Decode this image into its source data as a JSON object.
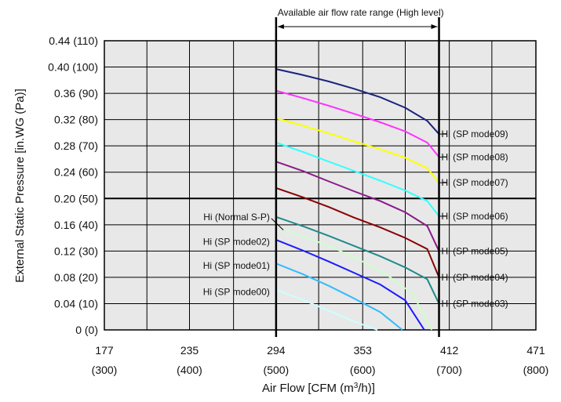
{
  "chart_data": {
    "type": "line",
    "xlabel": "Air Flow [CFM (m³/h)]",
    "ylabel": "External Static Pressure [in.WG (Pa)]",
    "x_unit_primary": "CFM",
    "x_unit_secondary": "m³/h",
    "xlim": [
      177,
      471
    ],
    "ylim": [
      0,
      0.44
    ],
    "x_ticks": [
      {
        "value": 177,
        "label": "177",
        "sublabel": "(300)"
      },
      {
        "value": 235,
        "label": "235",
        "sublabel": "(400)"
      },
      {
        "value": 294,
        "label": "294",
        "sublabel": "(500)"
      },
      {
        "value": 353,
        "label": "353",
        "sublabel": "(600)"
      },
      {
        "value": 412,
        "label": "412",
        "sublabel": "(700)"
      },
      {
        "value": 471,
        "label": "471",
        "sublabel": "(800)"
      }
    ],
    "y_ticks": [
      {
        "value": 0,
        "label": "0 (0)"
      },
      {
        "value": 0.04,
        "label": "0.04 (10)"
      },
      {
        "value": 0.08,
        "label": "0.08 (20)"
      },
      {
        "value": 0.12,
        "label": "0.12 (30)"
      },
      {
        "value": 0.16,
        "label": "0.16 (40)"
      },
      {
        "value": 0.2,
        "label": "0.20 (50)"
      },
      {
        "value": 0.24,
        "label": "0.24 (60)"
      },
      {
        "value": 0.28,
        "label": "0.28 (70)"
      },
      {
        "value": 0.32,
        "label": "0.32 (80)"
      },
      {
        "value": 0.36,
        "label": "0.36 (90)"
      },
      {
        "value": 0.4,
        "label": "0.40 (100)"
      },
      {
        "value": 0.44,
        "label": "0.44 (110)"
      }
    ],
    "x_minor_ticks": [
      206,
      265,
      323,
      382,
      441
    ],
    "bold_gridline_y": 0.2,
    "range_note": {
      "text": "Available air flow rate range (High level)",
      "x_start": 294,
      "x_end": 405
    },
    "grid": true,
    "background": "#e8e8e8",
    "series": [
      {
        "name": "Hi (SP mode09)",
        "color": "#1a237e",
        "label_side": "right",
        "x": [
          294,
          312,
          330,
          347,
          365,
          382,
          397,
          405
        ],
        "y": [
          0.397,
          0.388,
          0.378,
          0.367,
          0.354,
          0.338,
          0.318,
          0.298
        ]
      },
      {
        "name": "Hi (SP mode08)",
        "color": "#ff33ff",
        "label_side": "right",
        "x": [
          294,
          312,
          330,
          347,
          365,
          382,
          397,
          405
        ],
        "y": [
          0.364,
          0.353,
          0.341,
          0.329,
          0.316,
          0.302,
          0.285,
          0.263
        ]
      },
      {
        "name": "Hi (SP mode07)",
        "color": "#ffff00",
        "label_side": "right",
        "x": [
          294,
          312,
          330,
          347,
          365,
          382,
          397,
          405
        ],
        "y": [
          0.322,
          0.311,
          0.299,
          0.287,
          0.275,
          0.262,
          0.246,
          0.224
        ]
      },
      {
        "name": "Hi (SP mode06)",
        "color": "#33ffff",
        "label_side": "right",
        "x": [
          294,
          312,
          330,
          347,
          365,
          382,
          397,
          405
        ],
        "y": [
          0.285,
          0.271,
          0.256,
          0.242,
          0.227,
          0.212,
          0.196,
          0.173
        ]
      },
      {
        "name": "Hi (SP mode05)",
        "color": "#8b1a8b",
        "label_side": "right",
        "x": [
          294,
          312,
          330,
          347,
          365,
          382,
          397,
          405
        ],
        "y": [
          0.256,
          0.242,
          0.226,
          0.211,
          0.196,
          0.179,
          0.158,
          0.12
        ]
      },
      {
        "name": "Hi (SP mode04)",
        "color": "#8b0000",
        "label_side": "right",
        "x": [
          294,
          312,
          330,
          347,
          365,
          382,
          397,
          405
        ],
        "y": [
          0.216,
          0.202,
          0.187,
          0.171,
          0.156,
          0.14,
          0.123,
          0.08
        ]
      },
      {
        "name": "Hi (SP mode03)",
        "color": "#1f8a8a",
        "label_side": "right",
        "x": [
          294,
          312,
          330,
          347,
          365,
          382,
          397,
          405
        ],
        "y": [
          0.172,
          0.158,
          0.143,
          0.128,
          0.112,
          0.095,
          0.077,
          0.04
        ]
      },
      {
        "name": "Hi (Normal S-P)",
        "color": "#ccffcc",
        "label_side": "left",
        "x": [
          300,
          318,
          336,
          353,
          370,
          387,
          400
        ],
        "y": [
          0.152,
          0.138,
          0.122,
          0.104,
          0.083,
          0.055,
          0.0
        ]
      },
      {
        "name": "Hi (SP mode02)",
        "color": "#1a1aff",
        "label_side": "left",
        "x": [
          294,
          312,
          330,
          347,
          365,
          382,
          395
        ],
        "y": [
          0.137,
          0.121,
          0.104,
          0.087,
          0.069,
          0.045,
          0.0
        ]
      },
      {
        "name": "Hi (SP mode01)",
        "color": "#33bbff",
        "label_side": "left",
        "x": [
          294,
          312,
          330,
          347,
          365,
          380
        ],
        "y": [
          0.101,
          0.085,
          0.067,
          0.048,
          0.027,
          0.0
        ]
      },
      {
        "name": "Hi (SP mode00)",
        "color": "#ccffff",
        "label_side": "left",
        "x": [
          294,
          312,
          330,
          347,
          363
        ],
        "y": [
          0.061,
          0.046,
          0.029,
          0.013,
          0.0
        ]
      }
    ]
  }
}
